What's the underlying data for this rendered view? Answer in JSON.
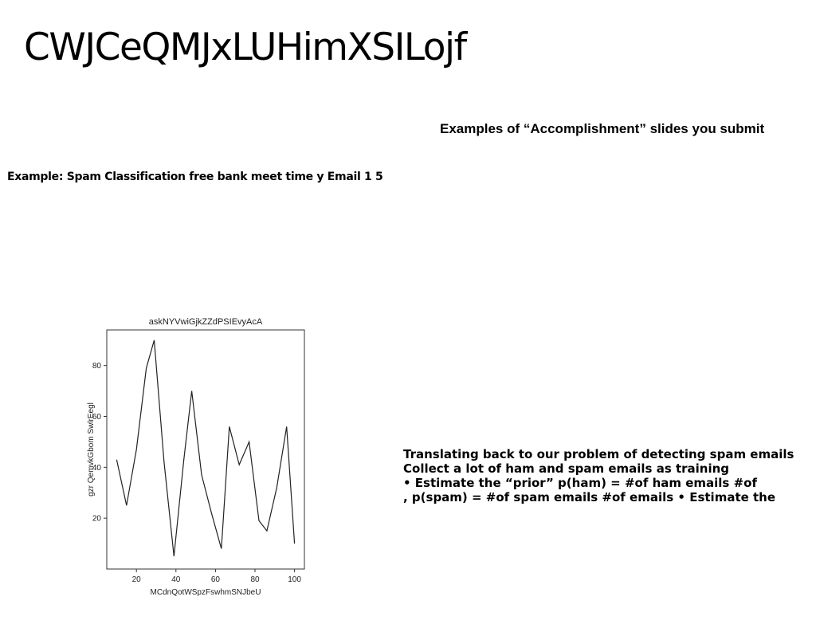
{
  "slide": {
    "title": "CWJCeQMJxLUHimXSILojf",
    "heading_right": "Examples of “Accomplishment” slides you submit",
    "heading_left": "Example: Spam Classification free bank meet time y Email 1 5",
    "body_lines": [
      "Translating back to our problem of detecting spam emails",
      "Collect a lot of ham and spam emails as training",
      "• Estimate the “prior” p(ham) = #of ham emails #of",
      ", p(spam) = #of spam emails #of emails • Estimate the"
    ]
  },
  "chart_data": {
    "type": "line",
    "title": "askNYVwiGjkZZdPSIEvyAcA",
    "xlabel": "MCdnQotWSpzFswhmSNJbeU",
    "ylabel": "gzr QemvkGbom SwlrEegl",
    "x": [
      10,
      15,
      20,
      25,
      29,
      34,
      39,
      44,
      48,
      53,
      58,
      63,
      67,
      72,
      77,
      82,
      86,
      91,
      96,
      100
    ],
    "series": [
      {
        "values": [
          43,
          25,
          47,
          79,
          90,
          42,
          5,
          43,
          70,
          37,
          22,
          8,
          56,
          41,
          50,
          19,
          15,
          32,
          56,
          10
        ]
      }
    ],
    "xticks": [
      20,
      40,
      60,
      80,
      100
    ],
    "yticks": [
      20,
      40,
      60,
      80
    ],
    "xlim": [
      5,
      105
    ],
    "ylim": [
      0,
      94
    ],
    "grid": false,
    "line_color": "#222222"
  }
}
